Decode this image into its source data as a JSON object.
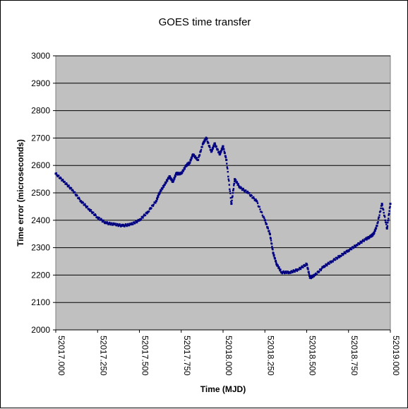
{
  "chart_data": {
    "type": "scatter",
    "title": "GOES time transfer",
    "xlabel": "Time (MJD)",
    "ylabel": "Time error (microseconds)",
    "xlim": [
      52017.0,
      52019.0
    ],
    "ylim": [
      2000,
      3000
    ],
    "x_ticks": [
      "52017.000",
      "52017.250",
      "52017.500",
      "52017.750",
      "52018.000",
      "52018.250",
      "52018.500",
      "52018.750",
      "52019.000"
    ],
    "y_ticks": [
      "2000",
      "2100",
      "2200",
      "2300",
      "2400",
      "2500",
      "2600",
      "2700",
      "2800",
      "2900",
      "3000"
    ],
    "grid": "horizontal",
    "legend": "none",
    "plot_background": "#C0C0C0",
    "marker_color": "#000080",
    "series": [
      {
        "x": [
          52017.0,
          52017.05,
          52017.1,
          52017.15,
          52017.2,
          52017.25,
          52017.3,
          52017.35,
          52017.4,
          52017.45,
          52017.5,
          52017.55,
          52017.6,
          52017.62,
          52017.65,
          52017.68,
          52017.7,
          52017.72,
          52017.75,
          52017.78,
          52017.8,
          52017.82,
          52017.85,
          52017.88,
          52017.9,
          52017.93,
          52017.95,
          52017.98,
          52018.0,
          52018.02,
          52018.05,
          52018.07,
          52018.1,
          52018.15,
          52018.2,
          52018.25,
          52018.28,
          52018.3,
          52018.32,
          52018.35,
          52018.4,
          52018.45,
          52018.5,
          52018.52,
          52018.55,
          52018.6,
          52018.65,
          52018.7,
          52018.75,
          52018.8,
          52018.85,
          52018.88,
          52018.9,
          52018.92,
          52018.95,
          52018.98,
          52019.0
        ],
        "y": [
          2570,
          2540,
          2510,
          2470,
          2440,
          2410,
          2390,
          2385,
          2380,
          2385,
          2400,
          2430,
          2470,
          2500,
          2530,
          2560,
          2540,
          2570,
          2570,
          2600,
          2610,
          2640,
          2620,
          2680,
          2700,
          2650,
          2680,
          2640,
          2670,
          2620,
          2460,
          2550,
          2520,
          2500,
          2470,
          2400,
          2350,
          2280,
          2240,
          2210,
          2210,
          2220,
          2240,
          2190,
          2200,
          2230,
          2250,
          2270,
          2290,
          2310,
          2330,
          2340,
          2350,
          2380,
          2460,
          2370,
          2460
        ]
      }
    ]
  }
}
